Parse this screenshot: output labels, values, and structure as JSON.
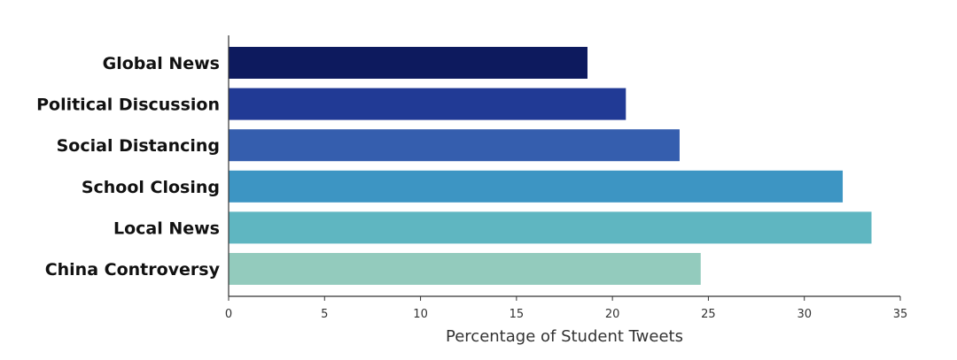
{
  "chart_data": {
    "type": "bar",
    "orientation": "horizontal",
    "categories": [
      "Global News",
      "Political Discussion",
      "Social Distancing",
      "School Closing",
      "Local News",
      "China Controversy"
    ],
    "values": [
      18.7,
      20.7,
      23.5,
      32.0,
      33.5,
      24.6
    ],
    "colors": [
      "#0d1a5e",
      "#213a95",
      "#355eae",
      "#3d95c3",
      "#5fb6c1",
      "#93cbbd"
    ],
    "xlabel": "Percentage of Student Tweets",
    "ylabel": "",
    "xlim": [
      0,
      35
    ],
    "xticks": [
      "0",
      "5",
      "10",
      "15",
      "20",
      "25",
      "30",
      "35"
    ],
    "grid": false,
    "legend": "none"
  }
}
